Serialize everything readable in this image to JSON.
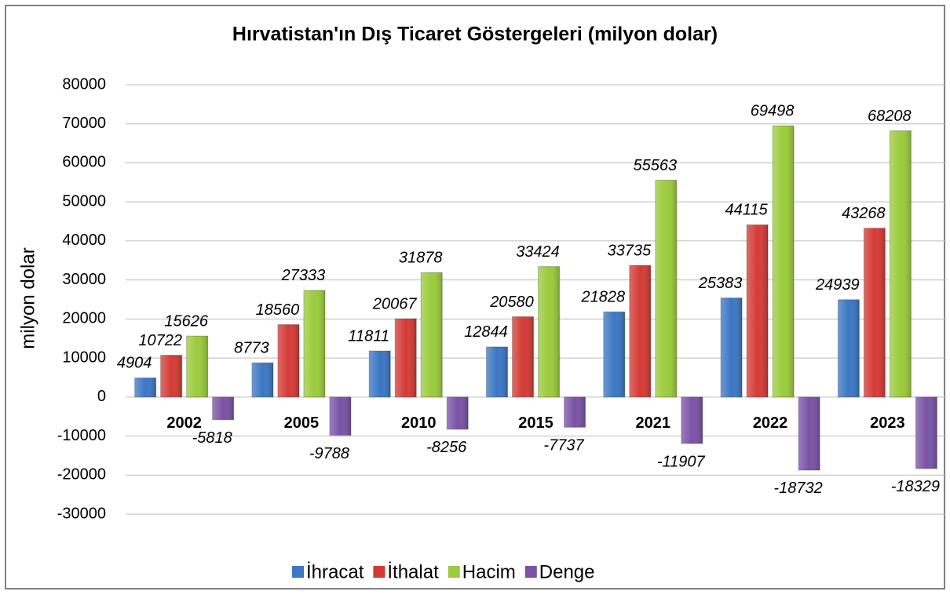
{
  "chart_data": {
    "type": "bar",
    "title": "Hırvatistan'ın Dış Ticaret Göstergeleri  (milyon dolar)",
    "y_label": "milyon dolar",
    "categories": [
      "2002",
      "2005",
      "2010",
      "2015",
      "2021",
      "2022",
      "2023"
    ],
    "series": [
      {
        "name": "İhracat",
        "color": "#3b77c4",
        "values": [
          4904,
          8773,
          11811,
          12844,
          21828,
          25383,
          24939
        ]
      },
      {
        "name": "İthalat",
        "color": "#d43a35",
        "values": [
          10722,
          18560,
          20067,
          20580,
          33735,
          44115,
          43268
        ]
      },
      {
        "name": "Hacim",
        "color": "#9bcb3b",
        "values": [
          15626,
          27333,
          31878,
          33424,
          55563,
          69498,
          68208
        ]
      },
      {
        "name": "Denge",
        "color": "#7a52a6",
        "values": [
          -5818,
          -9788,
          -8256,
          -7737,
          -11907,
          -18732,
          -18329
        ]
      }
    ],
    "ylim": [
      -30000,
      80000
    ],
    "yticks": [
      -30000,
      -20000,
      -10000,
      0,
      10000,
      20000,
      30000,
      40000,
      50000,
      60000,
      70000,
      80000
    ],
    "grid": true,
    "legend": "bottom"
  }
}
